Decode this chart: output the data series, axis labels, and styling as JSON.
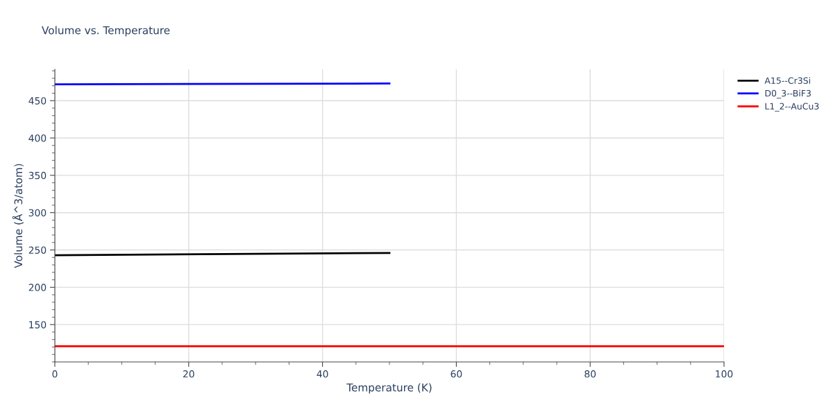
{
  "chart_data": {
    "type": "line",
    "title": "Volume vs. Temperature",
    "xlabel": "Temperature (K)",
    "ylabel": "Volume (Å^3/atom)",
    "xlim": [
      0,
      100
    ],
    "xticks": [
      0,
      20,
      40,
      60,
      80,
      100
    ],
    "ylim": [
      100,
      492
    ],
    "yticks": [
      150,
      200,
      250,
      300,
      350,
      400,
      450
    ],
    "grid": true,
    "legend": "top right",
    "line_style": "solid",
    "marker": "none",
    "series": [
      {
        "name": "A15--Cr3Si",
        "color": "#000000",
        "x": [
          0,
          50
        ],
        "values": [
          243,
          246
        ]
      },
      {
        "name": "D0_3--BiF3",
        "color": "#0000ff",
        "x": [
          0,
          50
        ],
        "values": [
          472,
          473
        ]
      },
      {
        "name": "L1_2--AuCu3",
        "color": "#ff0000",
        "x": [
          0,
          100
        ],
        "values": [
          121,
          121
        ]
      }
    ]
  }
}
